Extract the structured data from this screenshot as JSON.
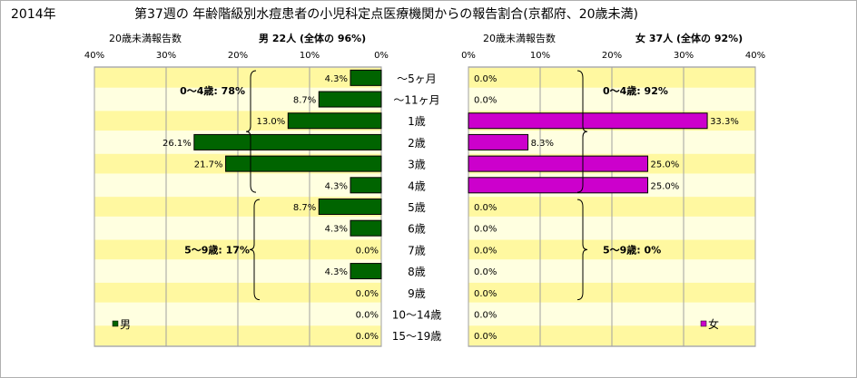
{
  "header": {
    "year": "2014年",
    "title": "第37週の 年齢階級別水痘患者の小児科定点医療機関からの報告割合(京都府、20歳未満)"
  },
  "chart_data": [
    {
      "type": "bar",
      "orientation": "horizontal",
      "side": "left",
      "title": "男 22人 (全体の 96%)",
      "subtitle": "20歳未満報告数",
      "xlim": [
        0,
        40
      ],
      "tick_labels": [
        "40%",
        "30%",
        "20%",
        "10%",
        "0%"
      ],
      "categories": [
        "～5ヶ月",
        "～11ヶ月",
        "1歳",
        "2歳",
        "3歳",
        "4歳",
        "5歳",
        "6歳",
        "7歳",
        "8歳",
        "9歳",
        "10～14歳",
        "15～19歳"
      ],
      "series": [
        {
          "name": "男",
          "color": "#006400",
          "values": [
            4.3,
            8.7,
            13.0,
            26.1,
            21.7,
            4.3,
            8.7,
            4.3,
            0.0,
            4.3,
            0.0,
            0.0,
            0.0
          ],
          "labels": [
            "4.3%",
            "8.7%",
            "13.0%",
            "26.1%",
            "21.7%",
            "4.3%",
            "8.7%",
            "4.3%",
            "0.0%",
            "4.3%",
            "0.0%",
            "0.0%",
            "0.0%"
          ]
        }
      ],
      "annotations": [
        "0～4歳: 78%",
        "5～9歳: 17%"
      ],
      "plot_background": "#ffffe0",
      "band_color": "#fff8a0",
      "legend": "bottom-left",
      "grid": true
    },
    {
      "type": "bar",
      "orientation": "horizontal",
      "side": "right",
      "title": "女 37人 (全体の 92%)",
      "subtitle": "20歳未満報告数",
      "xlim": [
        0,
        40
      ],
      "tick_labels": [
        "0%",
        "10%",
        "20%",
        "30%",
        "40%"
      ],
      "categories": [
        "～5ヶ月",
        "～11ヶ月",
        "1歳",
        "2歳",
        "3歳",
        "4歳",
        "5歳",
        "6歳",
        "7歳",
        "8歳",
        "9歳",
        "10～14歳",
        "15～19歳"
      ],
      "series": [
        {
          "name": "女",
          "color": "#cc00cc",
          "values": [
            0.0,
            0.0,
            33.3,
            8.3,
            25.0,
            25.0,
            0.0,
            0.0,
            0.0,
            0.0,
            0.0,
            0.0,
            0.0
          ],
          "labels": [
            "0.0%",
            "0.0%",
            "33.3%",
            "8.3%",
            "25.0%",
            "25.0%",
            "0.0%",
            "0.0%",
            "0.0%",
            "0.0%",
            "0.0%",
            "0.0%",
            "0.0%"
          ]
        }
      ],
      "annotations": [
        "0～4歳: 92%",
        "5～9歳: 0%"
      ],
      "plot_background": "#ffffe0",
      "band_color": "#fff8a0",
      "legend": "bottom-right",
      "grid": true
    }
  ]
}
